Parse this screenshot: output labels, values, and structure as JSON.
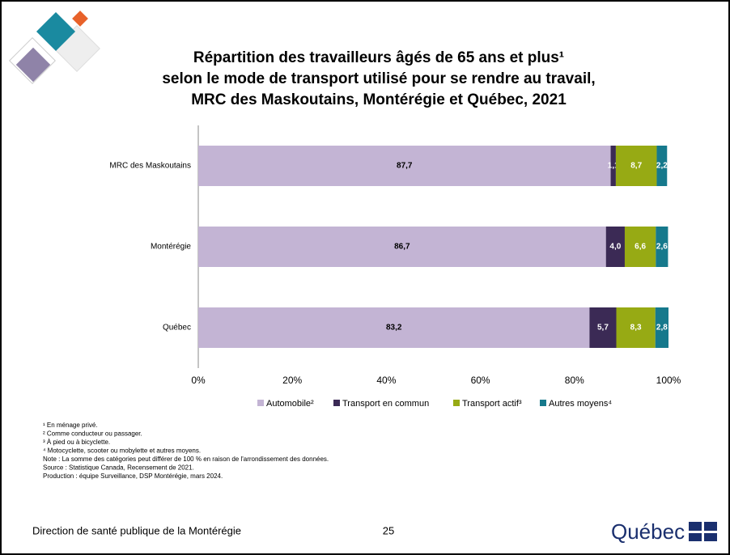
{
  "chart_data": {
    "type": "stacked-barh",
    "title": [
      "Répartition des travailleurs âgés de 65 ans et plus¹",
      "selon le mode de transport utilisé pour se rendre au travail,",
      "MRC des Maskoutains, Montérégie et Québec, 2021"
    ],
    "categories": [
      "MRC des Maskoutains",
      "Montérégie",
      "Québec"
    ],
    "series": [
      {
        "name": "Automobile²",
        "color": "#c3b4d4",
        "values": [
          87.7,
          86.7,
          83.2
        ],
        "value_labels": [
          "87,7",
          "86,7",
          "83,2"
        ]
      },
      {
        "name": "Transport en commun",
        "color": "#3b2a55",
        "values": [
          1.1,
          4.0,
          5.7
        ],
        "value_labels": [
          "1,1",
          "4,0",
          "5,7"
        ]
      },
      {
        "name": "Transport actif³",
        "color": "#97aa14",
        "values": [
          8.7,
          6.6,
          8.3
        ],
        "value_labels": [
          "8,7",
          "6,6",
          "8,3"
        ]
      },
      {
        "name": "Autres moyens⁴",
        "color": "#16798c",
        "values": [
          2.2,
          2.6,
          2.8
        ],
        "value_labels": [
          "2,2",
          "2,6",
          "2,8"
        ]
      }
    ],
    "xlim": [
      0,
      100
    ],
    "xticks": [
      {
        "value": 0,
        "label": "0%"
      },
      {
        "value": 20,
        "label": "20%"
      },
      {
        "value": 40,
        "label": "40%"
      },
      {
        "value": 60,
        "label": "60%"
      },
      {
        "value": 80,
        "label": "80%"
      },
      {
        "value": 100,
        "label": "100%"
      }
    ],
    "footnotes": [
      "¹ En ménage privé.",
      "² Comme conducteur ou passager.",
      "³ À pied ou à bicyclette.",
      "⁴ Motocyclette, scooter ou mobylette et autres moyens.",
      "Note : La somme des catégories peut différer de 100 % en raison de l'arrondissement des données.",
      "Source : Statistique Canada, Recensement de 2021.",
      "Production : équipe Surveillance, DSP Montérégie, mars 2024."
    ]
  },
  "footer": {
    "organization": "Direction de santé publique de la Montérégie",
    "page": "25",
    "logo": "Québec"
  }
}
